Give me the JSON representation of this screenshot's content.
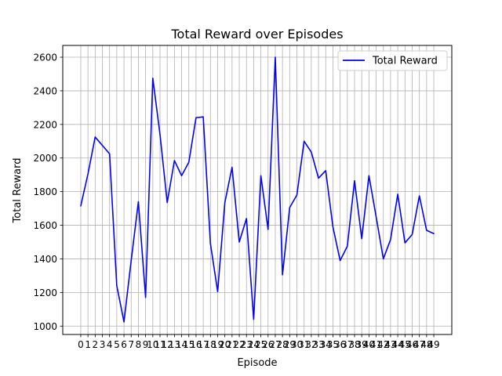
{
  "chart_data": {
    "type": "line",
    "title": "Total Reward over Episodes",
    "xlabel": "Episode",
    "ylabel": "Total Reward",
    "xlim": [
      -2.5,
      51.5
    ],
    "ylim": [
      950,
      2670
    ],
    "xticks": [
      0,
      1,
      2,
      3,
      4,
      5,
      6,
      7,
      8,
      9,
      10,
      11,
      12,
      13,
      14,
      15,
      16,
      17,
      18,
      19,
      20,
      21,
      22,
      23,
      24,
      25,
      26,
      27,
      28,
      29,
      30,
      31,
      32,
      33,
      34,
      35,
      36,
      37,
      38,
      39,
      40,
      41,
      42,
      43,
      44,
      45,
      46,
      47,
      48,
      49
    ],
    "yticks": [
      1000,
      1200,
      1400,
      1600,
      1800,
      2000,
      2200,
      2400,
      2600
    ],
    "grid": true,
    "legend_position": "top-right",
    "series": [
      {
        "name": "Total Reward",
        "color": "#0000ff",
        "x": [
          0,
          1,
          2,
          3,
          4,
          5,
          6,
          7,
          8,
          9,
          10,
          11,
          12,
          13,
          14,
          15,
          16,
          17,
          18,
          19,
          20,
          21,
          22,
          23,
          24,
          25,
          26,
          27,
          28,
          29,
          30,
          31,
          32,
          33,
          34,
          35,
          36,
          37,
          38,
          39,
          40,
          41,
          42,
          43,
          44,
          45,
          46,
          47,
          48,
          49
        ],
        "y": [
          1715,
          1905,
          2125,
          2075,
          2025,
          1240,
          1025,
          1390,
          1740,
          1170,
          2475,
          2140,
          1735,
          1985,
          1895,
          1975,
          2240,
          2245,
          1490,
          1205,
          1735,
          1945,
          1500,
          1640,
          1040,
          1895,
          1575,
          2600,
          1305,
          1705,
          1780,
          2100,
          2035,
          1880,
          1925,
          1590,
          1390,
          1475,
          1865,
          1520,
          1895,
          1650,
          1400,
          1515,
          1785,
          1495,
          1545,
          1775,
          1570,
          1550
        ]
      }
    ]
  }
}
